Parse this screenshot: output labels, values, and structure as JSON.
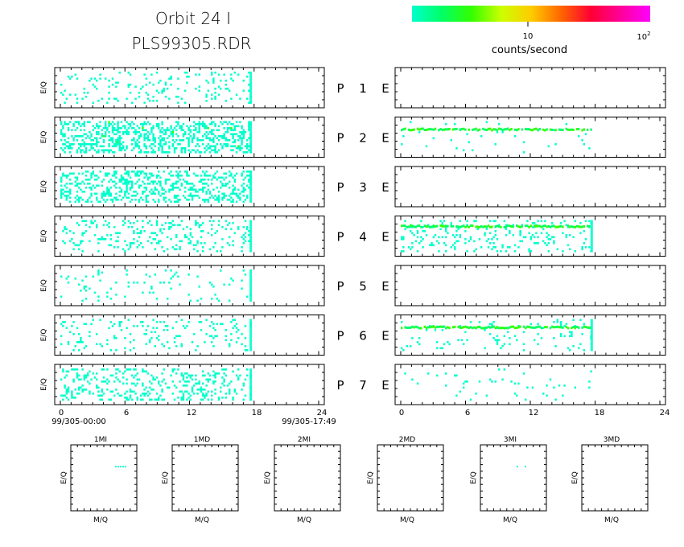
{
  "header": {
    "title_line1": "Orbit 24 I",
    "title_line2": "PLS99305.RDR"
  },
  "colorbar": {
    "tick_mid": "10",
    "tick_end_base": "10",
    "tick_end_exp": "2",
    "label": "counts/second",
    "colors": [
      "#00ffcc",
      "#00ff66",
      "#33ff00",
      "#ccff00",
      "#ffcc00",
      "#ff6600",
      "#ff0033",
      "#ff0099",
      "#ff00ff"
    ]
  },
  "rows": [
    {
      "num": "1",
      "left_letter": "P",
      "right_letter": "E"
    },
    {
      "num": "2",
      "left_letter": "P",
      "right_letter": "E"
    },
    {
      "num": "3",
      "left_letter": "P",
      "right_letter": "E"
    },
    {
      "num": "4",
      "left_letter": "P",
      "right_letter": "E"
    },
    {
      "num": "5",
      "left_letter": "P",
      "right_letter": "E"
    },
    {
      "num": "6",
      "left_letter": "P",
      "right_letter": "E"
    },
    {
      "num": "7",
      "left_letter": "P",
      "right_letter": "E"
    }
  ],
  "axes": {
    "ylabel": "E/Q",
    "x_ticks": [
      "0",
      "6",
      "12",
      "18",
      "24"
    ],
    "start_label": "99/305-00:00",
    "end_label": "99/305-17:49",
    "xlim": [
      0,
      24
    ]
  },
  "mq_panels": [
    {
      "title": "1MI",
      "xlabel": "M/Q",
      "ylabel": "E/Q"
    },
    {
      "title": "1MD",
      "xlabel": "M/Q",
      "ylabel": "E/Q"
    },
    {
      "title": "2MI",
      "xlabel": "M/Q",
      "ylabel": "E/Q"
    },
    {
      "title": "2MD",
      "xlabel": "M/Q",
      "ylabel": "E/Q"
    },
    {
      "title": "3MI",
      "xlabel": "M/Q",
      "ylabel": "E/Q"
    },
    {
      "title": "3MD",
      "xlabel": "M/Q",
      "ylabel": "E/Q"
    }
  ],
  "chart_data": {
    "type": "heatmap",
    "title": "Orbit 24 I",
    "subtitle": "PLS99305.RDR",
    "xlim": [
      0,
      24
    ],
    "x_ticks": [
      0,
      6,
      12,
      18,
      24
    ],
    "data_end_hour": 17.8,
    "colorbar_range": [
      1,
      100
    ],
    "colorbar_label": "counts/second",
    "panels": [
      {
        "name": "P 1",
        "density": 0.1,
        "hot": 0.0,
        "band": null
      },
      {
        "name": "P 2",
        "density": 0.38,
        "hot": 0.01,
        "band": null
      },
      {
        "name": "P 3",
        "density": 0.3,
        "hot": 0.0,
        "band": null
      },
      {
        "name": "P 4",
        "density": 0.15,
        "hot": 0.0,
        "band": null
      },
      {
        "name": "P 5",
        "density": 0.05,
        "hot": 0.0,
        "band": null
      },
      {
        "name": "P 6",
        "density": 0.1,
        "hot": 0.0,
        "band": null
      },
      {
        "name": "P 7",
        "density": 0.2,
        "hot": 0.0,
        "band": null
      },
      {
        "name": "E 1",
        "density": 0.0,
        "hot": 0.0,
        "band": null
      },
      {
        "name": "E 2",
        "density": 0.02,
        "hot": 0.0,
        "band": 0.3
      },
      {
        "name": "E 3",
        "density": 0.0,
        "hot": 0.0,
        "band": null
      },
      {
        "name": "E 4",
        "density": 0.12,
        "hot": 0.0,
        "band": 0.25
      },
      {
        "name": "E 5",
        "density": 0.0,
        "hot": 0.0,
        "band": null
      },
      {
        "name": "E 6",
        "density": 0.05,
        "hot": 0.0,
        "band": 0.3
      },
      {
        "name": "E 7",
        "density": 0.03,
        "hot": 0.0,
        "band": null
      }
    ]
  }
}
